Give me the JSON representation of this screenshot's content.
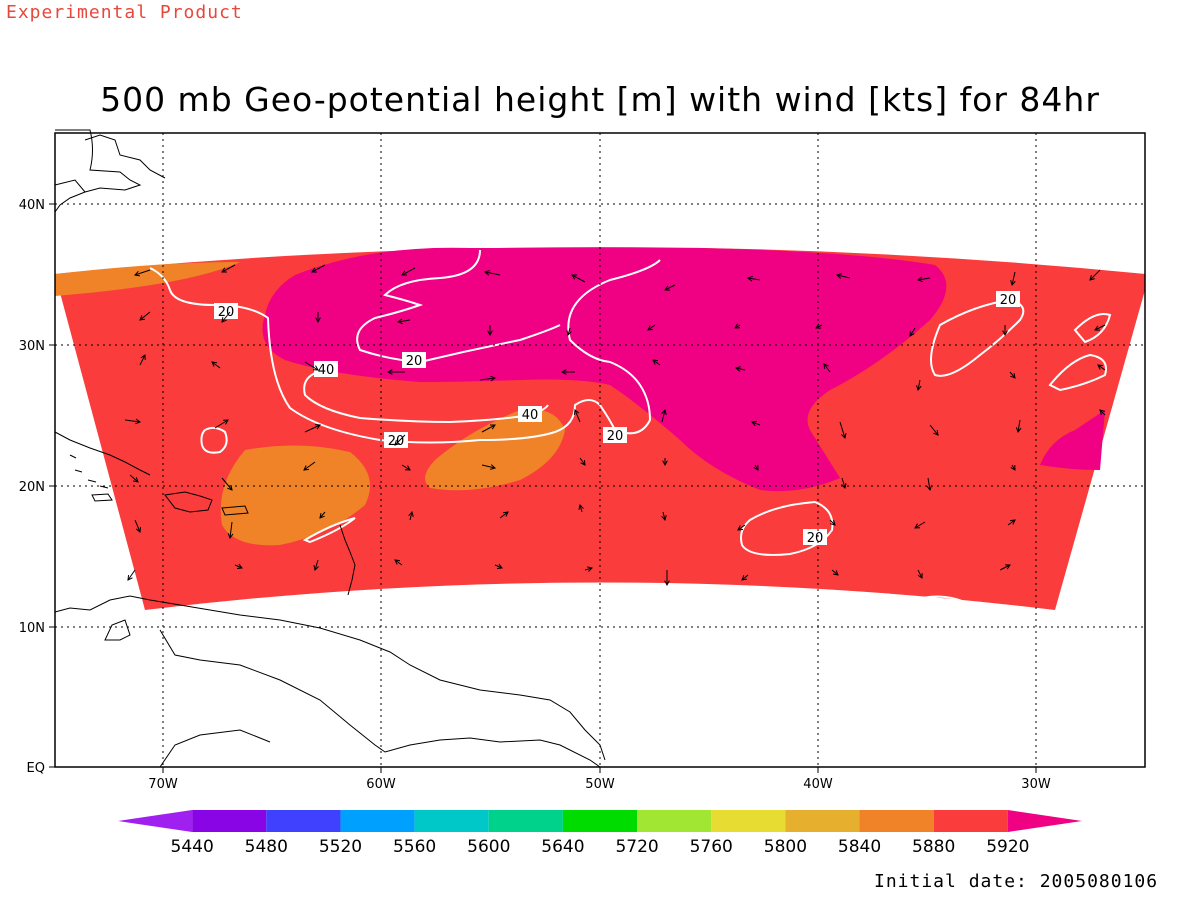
{
  "watermark": "Experimental Product",
  "title": "500 mb Geo-potential height [m] with wind [kts] for 84hr",
  "initial_date": "Initial date: 2005080106",
  "axes": {
    "lat_ticks": [
      "40N",
      "30N",
      "20N",
      "10N",
      "EQ"
    ],
    "lon_ticks": [
      "70W",
      "60W",
      "50W",
      "40W",
      "30W"
    ]
  },
  "wind_contours": [
    "20",
    "40",
    "20",
    "40",
    "20",
    "20",
    "20",
    "20"
  ],
  "colorbar": {
    "labels": [
      "5440",
      "5480",
      "5520",
      "5560",
      "5600",
      "5640",
      "5720",
      "5760",
      "5800",
      "5840",
      "5880",
      "5920"
    ],
    "colors": [
      "#a020f0",
      "#8a05e6",
      "#4040ff",
      "#00a0ff",
      "#00c8c8",
      "#00d28c",
      "#00dc00",
      "#a0e632",
      "#e6dc32",
      "#e6af2d",
      "#f08228",
      "#fa3c3c",
      "#f00082"
    ]
  },
  "colors": {
    "base_fill": "#fa3c3c",
    "high_fill": "#f00082",
    "low_fill": "#f08228",
    "contour": "#ffffff",
    "coast": "#000000"
  }
}
